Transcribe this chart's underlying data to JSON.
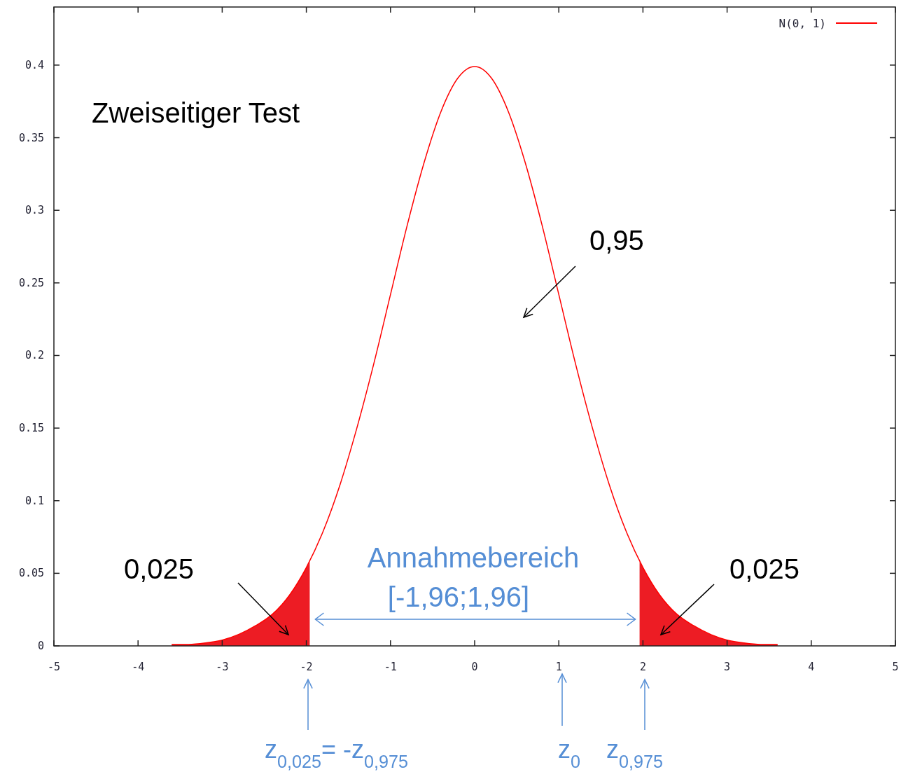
{
  "chart_data": {
    "type": "line",
    "xlim": [
      -5,
      5
    ],
    "xticks": [
      -5,
      -4,
      -3,
      -2,
      -1,
      0,
      1,
      2,
      3,
      4,
      5
    ],
    "ylim": [
      0,
      0.44
    ],
    "yticks": [
      0,
      0.05,
      0.1,
      0.15,
      0.2,
      0.25,
      0.3,
      0.35,
      0.4
    ],
    "legend": "top right",
    "series": [
      {
        "name": "N(0, 1)",
        "color": "#ff0000",
        "x": [
          -3.6,
          -3.4,
          -3.2,
          -3,
          -2.8,
          -2.6,
          -2.4,
          -2.2,
          -2,
          -1.8,
          -1.6,
          -1.4,
          -1.2,
          -1,
          -0.8,
          -0.6,
          -0.4,
          -0.2,
          0,
          0.2,
          0.4,
          0.6,
          0.8,
          1,
          1.2,
          1.4,
          1.6,
          1.8,
          2,
          2.2,
          2.4,
          2.6,
          2.8,
          3,
          3.2,
          3.4,
          3.6
        ],
        "values": [
          0.001,
          0.001,
          0.002,
          0.004,
          0.008,
          0.014,
          0.022,
          0.035,
          0.054,
          0.079,
          0.111,
          0.15,
          0.194,
          0.242,
          0.29,
          0.333,
          0.368,
          0.391,
          0.399,
          0.391,
          0.368,
          0.333,
          0.29,
          0.242,
          0.194,
          0.15,
          0.111,
          0.079,
          0.054,
          0.035,
          0.022,
          0.014,
          0.008,
          0.004,
          0.002,
          0.001,
          0.001
        ]
      },
      {
        "type": "area",
        "color": "#ed1c24",
        "x": [
          -3.6,
          -3.4,
          -3.2,
          -3,
          -2.8,
          -2.6,
          -2.4,
          -2.2,
          -2,
          -1.96
        ],
        "values": [
          0.001,
          0.001,
          0.002,
          0.004,
          0.008,
          0.014,
          0.022,
          0.035,
          0.054,
          0.058
        ]
      },
      {
        "type": "area",
        "color": "#ed1c24",
        "x": [
          1.96,
          2,
          2.2,
          2.4,
          2.6,
          2.8,
          3,
          3.2,
          3.4,
          3.6
        ],
        "values": [
          0.058,
          0.054,
          0.035,
          0.022,
          0.014,
          0.008,
          0.004,
          0.002,
          0.001,
          0.001
        ]
      }
    ],
    "annotations": [
      "Zweiseitiger Test",
      "0,95",
      "0,025",
      "0,025",
      "Annahmebereich",
      "[-1,96;1,96]",
      "z$_{0,025}$= -z$_{0,975}$",
      "z$_{0}$",
      "z$_{0,975}$"
    ]
  }
}
